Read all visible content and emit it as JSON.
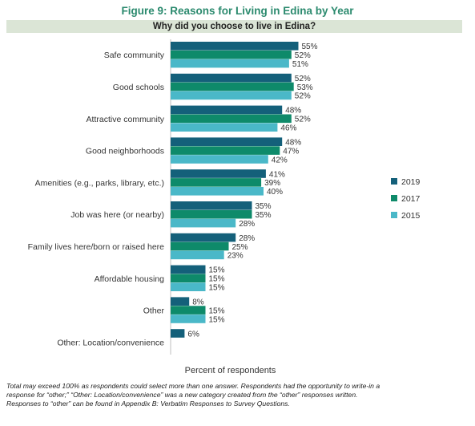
{
  "figure_title": "Figure 9: Reasons for Living in Edina by Year",
  "colors": {
    "2019": "#14607a",
    "2017": "#0e8a6a",
    "2015": "#4ab8c8",
    "question_bg": "#dbe5d6",
    "title": "#2b8a6e"
  },
  "chart_data": {
    "type": "bar",
    "orientation": "horizontal",
    "title": "Why did you choose to live in Edina?",
    "xlabel": "Percent of respondents",
    "ylabel": "",
    "xlim": [
      0,
      100
    ],
    "grid": false,
    "legend_position": "right",
    "value_suffix": "%",
    "categories": [
      "Safe community",
      "Good schools",
      "Attractive community",
      "Good neighborhoods",
      "Amenities (e.g., parks, library, etc.)",
      "Job was here (or nearby)",
      "Family lives here/born or raised here",
      "Affordable housing",
      "Other",
      "Other: Location/convenience"
    ],
    "series": [
      {
        "name": "2019",
        "values": [
          55,
          52,
          48,
          48,
          41,
          35,
          28,
          15,
          8,
          6
        ]
      },
      {
        "name": "2017",
        "values": [
          52,
          53,
          52,
          47,
          39,
          35,
          25,
          15,
          15,
          null
        ]
      },
      {
        "name": "2015",
        "values": [
          51,
          52,
          46,
          42,
          40,
          28,
          23,
          15,
          15,
          null
        ]
      }
    ]
  },
  "footnote": [
    "Total may exceed 100% as respondents could select more than one answer. Respondents had the opportunity to write-in a",
    "response for “other;” “Other: Location/convenience” was a new category created from the “other” responses written.",
    "Responses to “other” can be found in Appendix B: Verbatim Responses to Survey Questions."
  ]
}
